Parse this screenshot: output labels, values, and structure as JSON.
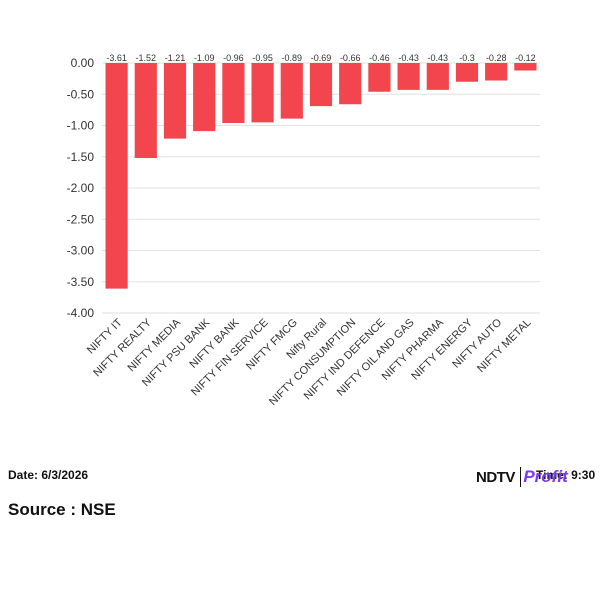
{
  "chart_data": {
    "type": "bar",
    "categories": [
      "NIFTY IT",
      "NIFTY REALTY",
      "NIFTY MEDIA",
      "NIFTY PSU BANK",
      "NIFTY BANK",
      "NIFTY FIN SERVICE",
      "NIFTY FMCG",
      "Nifty Rural",
      "NIFTY CONSUMPTION",
      "NIFTY IND DEFENCE",
      "NIFTY OIL AND GAS",
      "NIFTY PHARMA",
      "NIFTY ENERGY",
      "NIFTY AUTO",
      "NIFTY METAL"
    ],
    "values": [
      -3.61,
      -1.52,
      -1.21,
      -1.09,
      -0.96,
      -0.95,
      -0.89,
      -0.69,
      -0.66,
      -0.46,
      -0.43,
      -0.43,
      -0.3,
      -0.28,
      -0.12
    ],
    "value_labels": [
      "-3.61",
      "-1.52",
      "-1.21",
      "-1.09",
      "-0.96",
      "-0.95",
      "-0.89",
      "-0.69",
      "-0.66",
      "-0.46",
      "-0.43",
      "-0.43",
      "-0.3",
      "-0.28",
      "-0.12"
    ],
    "yticks": [
      "0.00",
      "-0.50",
      "-1.00",
      "-1.50",
      "-2.00",
      "-2.50",
      "-3.00",
      "-3.50",
      "-4.00"
    ],
    "ylim": [
      -4,
      0
    ],
    "grid": true,
    "bar_color": "#f2454e"
  },
  "footer": {
    "date": "Date: 6/3/2026",
    "time": "Time: 9:30",
    "source": "Source : NSE"
  },
  "logo": {
    "ndtv": "NDTV",
    "profit": "Profit",
    "profit_color": "#7b3cf0"
  }
}
